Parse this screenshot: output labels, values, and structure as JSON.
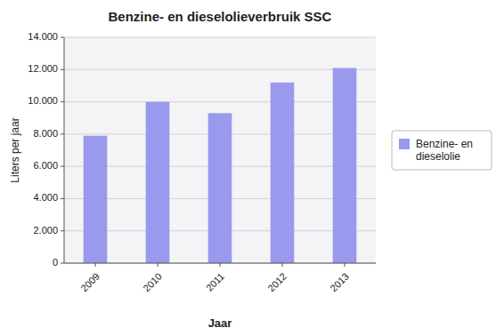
{
  "chart_data": {
    "type": "bar",
    "title": "Benzine- en dieselolieverbruik SSC",
    "x_label": "Jaar",
    "y_label": "Liters per jaar",
    "categories": [
      "2009",
      "2010",
      "2011",
      "2012",
      "2013"
    ],
    "series": [
      {
        "name": "Benzine- en\ndieselolie",
        "color": "#9999ee",
        "values": [
          7900,
          10000,
          9300,
          11200,
          12100
        ]
      }
    ],
    "ylim": [
      0,
      14000
    ],
    "yticks": [
      0,
      {
        "value": 2000,
        "label": "2.000"
      },
      {
        "value": 4000,
        "label": "4.000"
      },
      {
        "value": 6000,
        "label": "6.000"
      },
      {
        "value": 8000,
        "label": "8.000"
      },
      {
        "value": 10000,
        "label": "10.000"
      },
      {
        "value": 12000,
        "label": "12.000"
      },
      {
        "value": 14000,
        "label": "14.000"
      }
    ],
    "grid": true,
    "legend": "right"
  }
}
